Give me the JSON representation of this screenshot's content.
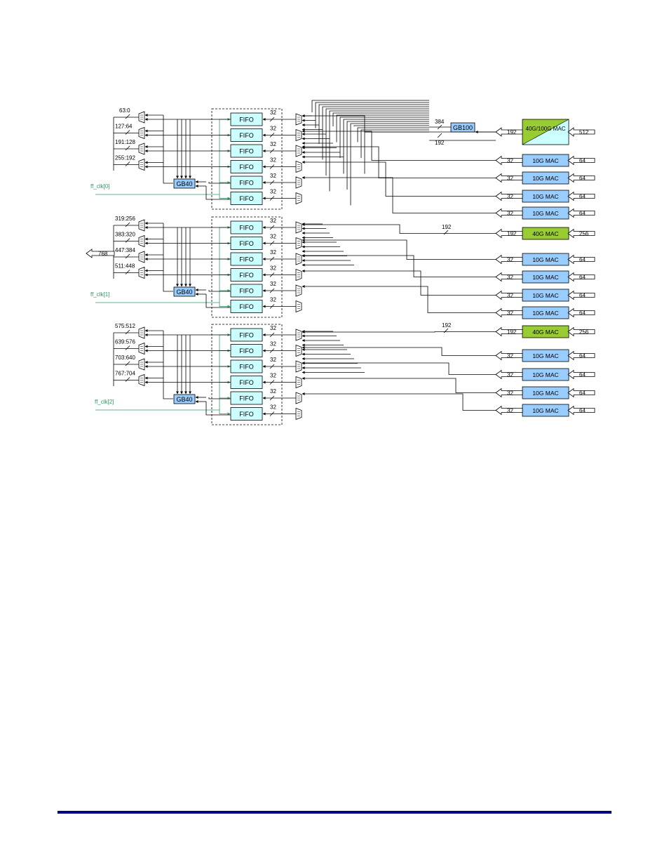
{
  "colors": {
    "fifo_fill": "#ccffff",
    "gb_fill": "#99ccff",
    "mac10_fill": "#99ccff",
    "mac40_fill": "#99cc33",
    "mac100_fill_a": "#99cc33",
    "mac100_fill_b": "#ccffff",
    "clock_line": "#339966",
    "wire": "#000000",
    "footer_rule": "#000080"
  },
  "labels": {
    "fifo": "FIFO",
    "gb40": "GB40",
    "gb100": "GB100",
    "mac10": "10G MAC",
    "mac40": "40G MAC",
    "mac100": "40G/100G MAC",
    "output_width": "768",
    "fifo_width": "32",
    "w384": "384",
    "w192": "192",
    "w512": "512",
    "w256": "256",
    "w64": "64",
    "w32": "32"
  },
  "groups": [
    {
      "clock": "ff_clk[0]",
      "slices": [
        "63:0",
        "127:64",
        "191:128",
        "255:192"
      ]
    },
    {
      "clock": "ff_clk[1]",
      "slices": [
        "319:256",
        "383:320",
        "447:384",
        "511:448"
      ]
    },
    {
      "clock": "ff_clk[2]",
      "slices": [
        "575:512",
        "639:576",
        "703:640",
        "767:704"
      ]
    }
  ],
  "macs": [
    {
      "type": "mac100",
      "in": "512",
      "out": "192"
    },
    {
      "type": "mac10",
      "in": "64",
      "out": "32"
    },
    {
      "type": "mac10",
      "in": "64",
      "out": "32"
    },
    {
      "type": "mac10",
      "in": "64",
      "out": "32"
    },
    {
      "type": "mac10",
      "in": "64",
      "out": "32"
    },
    {
      "type": "mac40",
      "in": "256",
      "out": "192"
    },
    {
      "type": "mac10",
      "in": "64",
      "out": "32"
    },
    {
      "type": "mac10",
      "in": "64",
      "out": "32"
    },
    {
      "type": "mac10",
      "in": "64",
      "out": "32"
    },
    {
      "type": "mac10",
      "in": "64",
      "out": "32"
    },
    {
      "type": "mac40",
      "in": "256",
      "out": "192"
    },
    {
      "type": "mac10",
      "in": "64",
      "out": "32"
    },
    {
      "type": "mac10",
      "in": "64",
      "out": "32"
    },
    {
      "type": "mac10",
      "in": "64",
      "out": "32"
    },
    {
      "type": "mac10",
      "in": "64",
      "out": "32"
    }
  ]
}
